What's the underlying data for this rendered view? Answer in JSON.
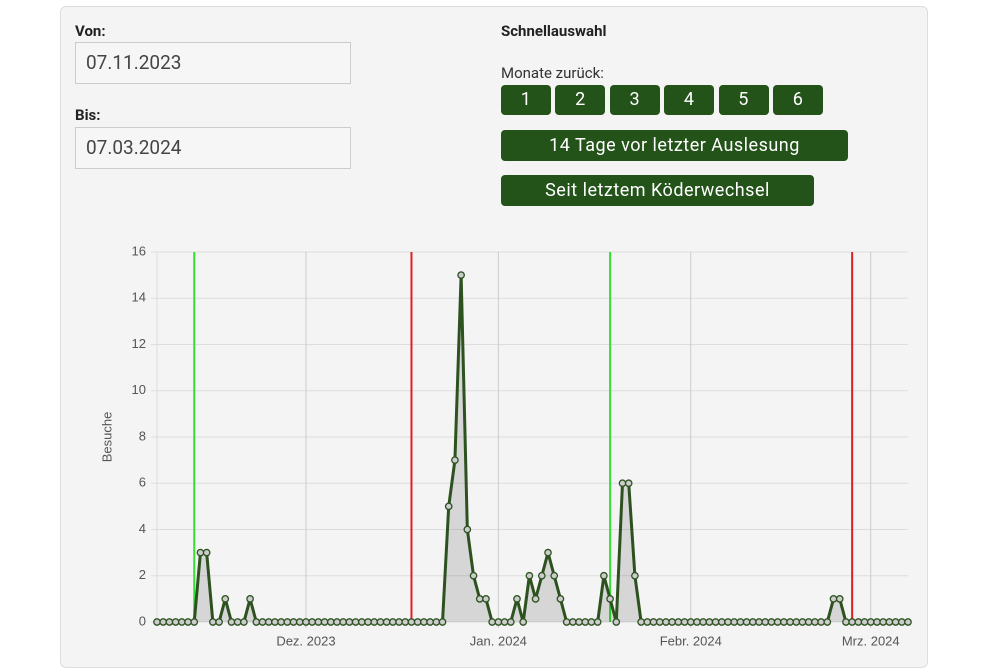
{
  "form": {
    "from": {
      "label": "Von:",
      "value": "07.11.2023"
    },
    "to": {
      "label": "Bis:",
      "value": "07.03.2024"
    }
  },
  "quick_select": {
    "title": "Schnellauswahl",
    "months_label": "Monate zurück:",
    "month_buttons": [
      "1",
      "2",
      "3",
      "4",
      "5",
      "6"
    ],
    "buttons": [
      "14 Tage vor letzter Auslesung",
      "Seit letztem Köderwechsel"
    ]
  },
  "chart": {
    "type": "line",
    "y_label": "Besuche",
    "categories": [
      null,
      null,
      null,
      null,
      null,
      null,
      null,
      null,
      null,
      null,
      null,
      null,
      null,
      null,
      null,
      null,
      null,
      null,
      null,
      null,
      null,
      null,
      null,
      null,
      "Dez. 2023",
      null,
      null,
      null,
      null,
      null,
      null,
      null,
      null,
      null,
      null,
      null,
      null,
      null,
      null,
      null,
      null,
      null,
      null,
      null,
      null,
      null,
      null,
      null,
      null,
      null,
      null,
      null,
      null,
      null,
      null,
      "Jan. 2024",
      null,
      null,
      null,
      null,
      null,
      null,
      null,
      null,
      null,
      null,
      null,
      null,
      null,
      null,
      null,
      null,
      null,
      null,
      null,
      null,
      null,
      null,
      null,
      null,
      null,
      null,
      null,
      null,
      null,
      null,
      "Febr. 2024",
      null,
      null,
      null,
      null,
      null,
      null,
      null,
      null,
      null,
      null,
      null,
      null,
      null,
      null,
      null,
      null,
      null,
      null,
      null,
      null,
      null,
      null,
      null,
      null,
      null,
      null,
      null,
      null,
      "Mrz. 2024",
      null,
      null,
      null,
      null,
      null,
      null
    ],
    "values": [
      0,
      0,
      0,
      0,
      0,
      0,
      0,
      3,
      3,
      0,
      0,
      1,
      0,
      0,
      0,
      1,
      0,
      0,
      0,
      0,
      0,
      0,
      0,
      0,
      0,
      0,
      0,
      0,
      0,
      0,
      0,
      0,
      0,
      0,
      0,
      0,
      0,
      0,
      0,
      0,
      0,
      0,
      0,
      0,
      0,
      0,
      0,
      5,
      7,
      15,
      4,
      2,
      1,
      1,
      0,
      0,
      0,
      0,
      1,
      0,
      2,
      1,
      2,
      3,
      2,
      1,
      0,
      0,
      0,
      0,
      0,
      0,
      2,
      1,
      0,
      6,
      6,
      2,
      0,
      0,
      0,
      0,
      0,
      0,
      0,
      0,
      0,
      0,
      0,
      0,
      0,
      0,
      0,
      0,
      0,
      0,
      0,
      0,
      0,
      0,
      0,
      0,
      0,
      0,
      0,
      0,
      0,
      0,
      0,
      1,
      1,
      0,
      0,
      0,
      0,
      0,
      0,
      0,
      0,
      0,
      0,
      0
    ],
    "color": "#2d5220",
    "ylim": [
      0,
      16
    ],
    "yticks": [
      0,
      2,
      4,
      6,
      8,
      10,
      12,
      14,
      16
    ],
    "grid": true,
    "markers": [
      {
        "at": 6,
        "color": "#33e033"
      },
      {
        "at": 41,
        "color": "#e02020"
      },
      {
        "at": 73,
        "color": "#33e033"
      },
      {
        "at": 112,
        "color": "#e02020"
      }
    ]
  }
}
